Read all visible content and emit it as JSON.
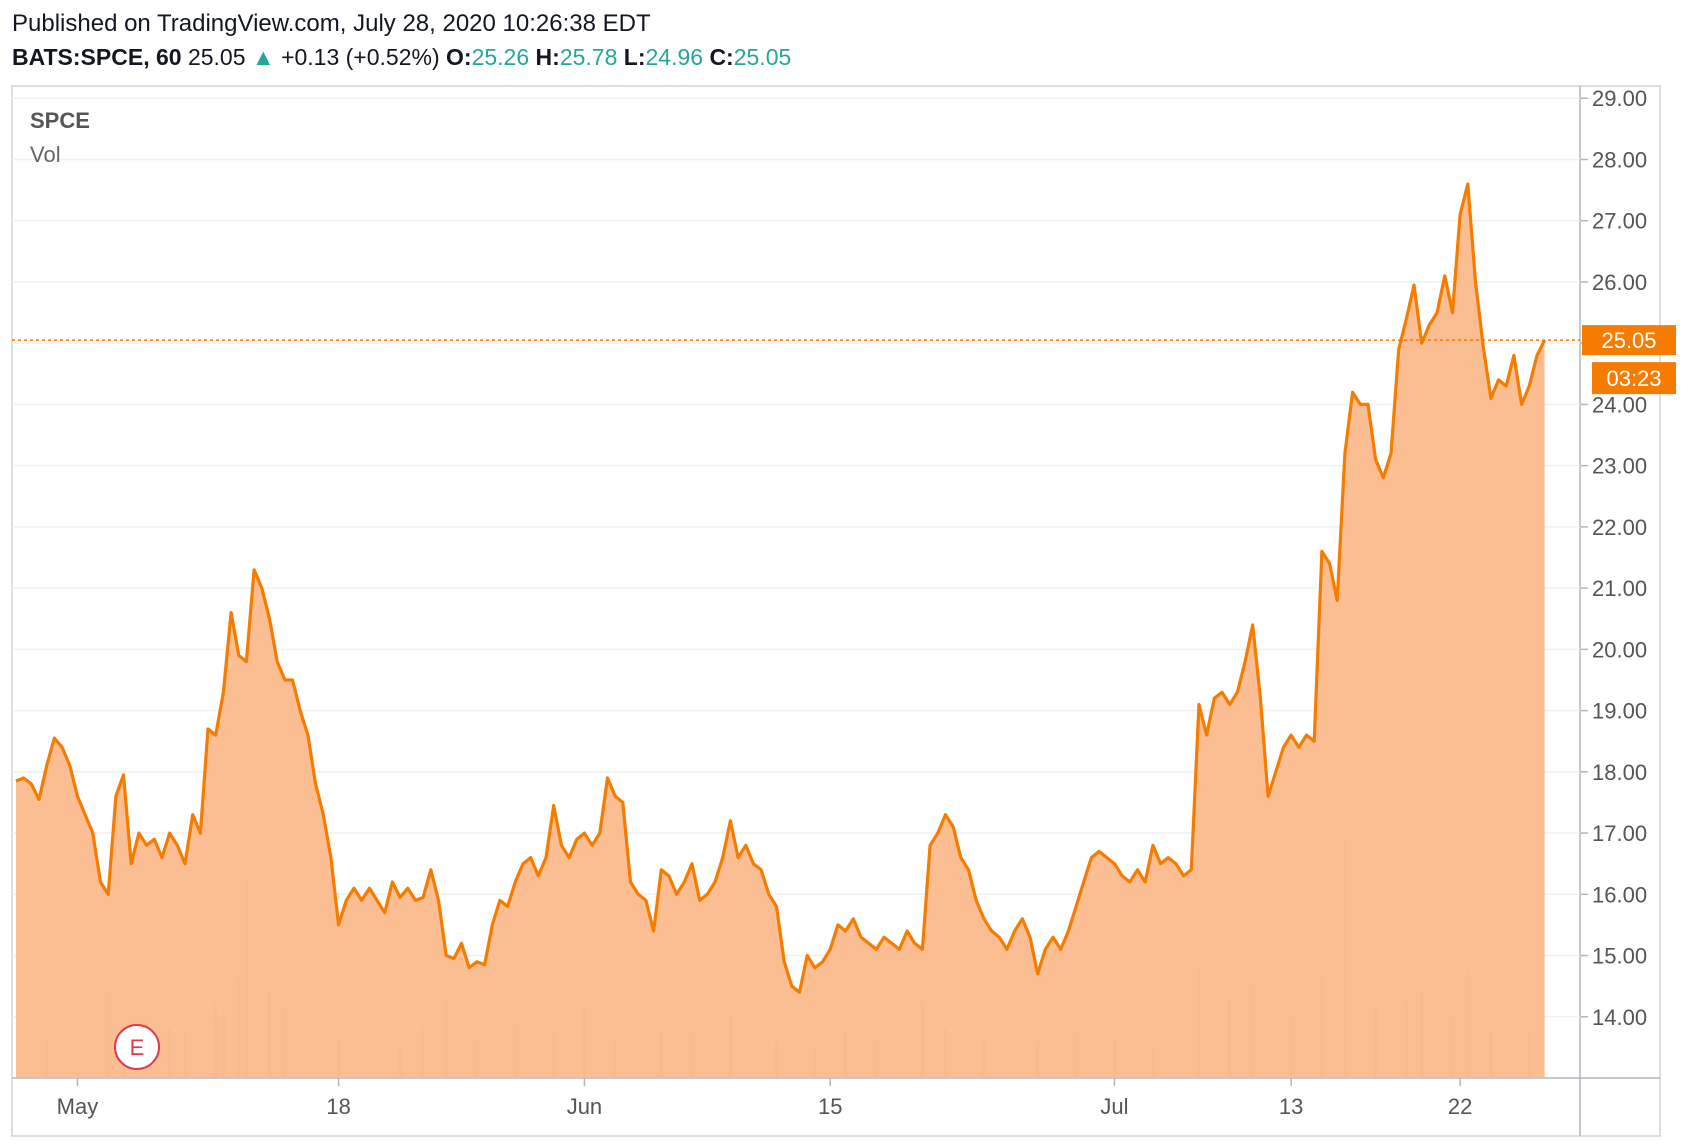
{
  "header": {
    "published": "Published on TradingView.com, July 28, 2020 10:26:38 EDT",
    "symbol": "BATS:SPCE, 60",
    "last": "25.05",
    "arrow": "▲",
    "change": "+0.13 (+0.52%)",
    "open_label": "O:",
    "open": "25.26",
    "high_label": "H:",
    "high": "25.78",
    "low_label": "L:",
    "low": "24.96",
    "close_label": "C:",
    "close": "25.05"
  },
  "legend": {
    "symbol": "SPCE",
    "volume": "Vol"
  },
  "price_tag": "25.05",
  "countdown_tag": "03:23",
  "earnings_marker": "E",
  "colors": {
    "line": "#f57c00",
    "fill": "#fbb88a",
    "up": "#26a69a",
    "grid": "#eef0f3",
    "axis_text": "#555555"
  },
  "chart_data": {
    "type": "area",
    "title": "SPCE",
    "ylim": [
      13.0,
      29.2
    ],
    "y_ticks": [
      "14.00",
      "15.00",
      "16.00",
      "17.00",
      "18.00",
      "19.00",
      "20.00",
      "21.00",
      "22.00",
      "23.00",
      "24.00",
      "25.00",
      "26.00",
      "27.00",
      "28.00",
      "29.00"
    ],
    "x_ticks": [
      {
        "label": "May",
        "x": 8
      },
      {
        "label": "18",
        "x": 42
      },
      {
        "label": "Jun",
        "x": 74
      },
      {
        "label": "15",
        "x": 106
      },
      {
        "label": "Jul",
        "x": 143
      },
      {
        "label": "13",
        "x": 166
      },
      {
        "label": "22",
        "x": 188
      }
    ],
    "x_range": [
      0,
      201
    ],
    "grid": true,
    "series": [
      {
        "values": [
          [
            0,
            17.85
          ],
          [
            1,
            17.9
          ],
          [
            2,
            17.8
          ],
          [
            3,
            17.55
          ],
          [
            4,
            18.1
          ],
          [
            5,
            18.55
          ],
          [
            6,
            18.4
          ],
          [
            7,
            18.1
          ],
          [
            8,
            17.6
          ],
          [
            9,
            17.3
          ],
          [
            10,
            17.0
          ],
          [
            11,
            16.2
          ],
          [
            12,
            16.0
          ],
          [
            13,
            17.6
          ],
          [
            14,
            17.95
          ],
          [
            15,
            16.5
          ],
          [
            16,
            17.0
          ],
          [
            17,
            16.8
          ],
          [
            18,
            16.9
          ],
          [
            19,
            16.6
          ],
          [
            20,
            17.0
          ],
          [
            21,
            16.8
          ],
          [
            22,
            16.5
          ],
          [
            23,
            17.3
          ],
          [
            24,
            17.0
          ],
          [
            25,
            18.7
          ],
          [
            26,
            18.6
          ],
          [
            27,
            19.3
          ],
          [
            28,
            20.6
          ],
          [
            29,
            19.9
          ],
          [
            30,
            19.8
          ],
          [
            31,
            21.3
          ],
          [
            32,
            21.0
          ],
          [
            33,
            20.5
          ],
          [
            34,
            19.8
          ],
          [
            35,
            19.5
          ],
          [
            36,
            19.5
          ],
          [
            37,
            19.0
          ],
          [
            38,
            18.6
          ],
          [
            39,
            17.8
          ],
          [
            40,
            17.3
          ],
          [
            41,
            16.6
          ],
          [
            42,
            15.5
          ],
          [
            43,
            15.9
          ],
          [
            44,
            16.1
          ],
          [
            45,
            15.9
          ],
          [
            46,
            16.1
          ],
          [
            47,
            15.9
          ],
          [
            48,
            15.7
          ],
          [
            49,
            16.2
          ],
          [
            50,
            15.95
          ],
          [
            51,
            16.1
          ],
          [
            52,
            15.9
          ],
          [
            53,
            15.95
          ],
          [
            54,
            16.4
          ],
          [
            55,
            15.9
          ],
          [
            56,
            15.0
          ],
          [
            57,
            14.95
          ],
          [
            58,
            15.2
          ],
          [
            59,
            14.8
          ],
          [
            60,
            14.9
          ],
          [
            61,
            14.85
          ],
          [
            62,
            15.5
          ],
          [
            63,
            15.9
          ],
          [
            64,
            15.8
          ],
          [
            65,
            16.2
          ],
          [
            66,
            16.5
          ],
          [
            67,
            16.6
          ],
          [
            68,
            16.3
          ],
          [
            69,
            16.6
          ],
          [
            70,
            17.45
          ],
          [
            71,
            16.8
          ],
          [
            72,
            16.6
          ],
          [
            73,
            16.9
          ],
          [
            74,
            17.0
          ],
          [
            75,
            16.8
          ],
          [
            76,
            17.0
          ],
          [
            77,
            17.9
          ],
          [
            78,
            17.6
          ],
          [
            79,
            17.5
          ],
          [
            80,
            16.2
          ],
          [
            81,
            16.0
          ],
          [
            82,
            15.9
          ],
          [
            83,
            15.4
          ],
          [
            84,
            16.4
          ],
          [
            85,
            16.3
          ],
          [
            86,
            16.0
          ],
          [
            87,
            16.2
          ],
          [
            88,
            16.5
          ],
          [
            89,
            15.9
          ],
          [
            90,
            16.0
          ],
          [
            91,
            16.2
          ],
          [
            92,
            16.6
          ],
          [
            93,
            17.2
          ],
          [
            94,
            16.6
          ],
          [
            95,
            16.8
          ],
          [
            96,
            16.5
          ],
          [
            97,
            16.4
          ],
          [
            98,
            16.0
          ],
          [
            99,
            15.8
          ],
          [
            100,
            14.9
          ],
          [
            101,
            14.5
          ],
          [
            102,
            14.4
          ],
          [
            103,
            15.0
          ],
          [
            104,
            14.8
          ],
          [
            105,
            14.9
          ],
          [
            106,
            15.1
          ],
          [
            107,
            15.5
          ],
          [
            108,
            15.4
          ],
          [
            109,
            15.6
          ],
          [
            110,
            15.3
          ],
          [
            111,
            15.2
          ],
          [
            112,
            15.1
          ],
          [
            113,
            15.3
          ],
          [
            114,
            15.2
          ],
          [
            115,
            15.1
          ],
          [
            116,
            15.4
          ],
          [
            117,
            15.2
          ],
          [
            118,
            15.1
          ],
          [
            119,
            16.8
          ],
          [
            120,
            17.0
          ],
          [
            121,
            17.3
          ],
          [
            122,
            17.1
          ],
          [
            123,
            16.6
          ],
          [
            124,
            16.4
          ],
          [
            125,
            15.9
          ],
          [
            126,
            15.6
          ],
          [
            127,
            15.4
          ],
          [
            128,
            15.3
          ],
          [
            129,
            15.1
          ],
          [
            130,
            15.4
          ],
          [
            131,
            15.6
          ],
          [
            132,
            15.3
          ],
          [
            133,
            14.7
          ],
          [
            134,
            15.1
          ],
          [
            135,
            15.3
          ],
          [
            136,
            15.1
          ],
          [
            137,
            15.4
          ],
          [
            138,
            15.8
          ],
          [
            139,
            16.2
          ],
          [
            140,
            16.6
          ],
          [
            141,
            16.7
          ],
          [
            142,
            16.6
          ],
          [
            143,
            16.5
          ],
          [
            144,
            16.3
          ],
          [
            145,
            16.2
          ],
          [
            146,
            16.4
          ],
          [
            147,
            16.2
          ],
          [
            148,
            16.8
          ],
          [
            149,
            16.5
          ],
          [
            150,
            16.6
          ],
          [
            151,
            16.5
          ],
          [
            152,
            16.3
          ],
          [
            153,
            16.4
          ],
          [
            154,
            19.1
          ],
          [
            155,
            18.6
          ],
          [
            156,
            19.2
          ],
          [
            157,
            19.3
          ],
          [
            158,
            19.1
          ],
          [
            159,
            19.3
          ],
          [
            160,
            19.8
          ],
          [
            161,
            20.4
          ],
          [
            162,
            19.2
          ],
          [
            163,
            17.6
          ],
          [
            164,
            18.0
          ],
          [
            165,
            18.4
          ],
          [
            166,
            18.6
          ],
          [
            167,
            18.4
          ],
          [
            168,
            18.6
          ],
          [
            169,
            18.5
          ],
          [
            170,
            21.6
          ],
          [
            171,
            21.4
          ],
          [
            172,
            20.8
          ],
          [
            173,
            23.2
          ],
          [
            174,
            24.2
          ],
          [
            175,
            24.0
          ],
          [
            176,
            24.0
          ],
          [
            177,
            23.1
          ],
          [
            178,
            22.8
          ],
          [
            179,
            23.2
          ],
          [
            180,
            24.9
          ],
          [
            181,
            25.4
          ],
          [
            182,
            25.95
          ],
          [
            183,
            25.0
          ],
          [
            184,
            25.3
          ],
          [
            185,
            25.5
          ],
          [
            186,
            26.1
          ],
          [
            187,
            25.5
          ],
          [
            188,
            27.1
          ],
          [
            189,
            27.6
          ],
          [
            190,
            26.0
          ],
          [
            191,
            24.95
          ],
          [
            192,
            24.1
          ],
          [
            193,
            24.4
          ],
          [
            194,
            24.3
          ],
          [
            195,
            24.8
          ],
          [
            196,
            24.0
          ],
          [
            197,
            24.3
          ],
          [
            198,
            24.8
          ],
          [
            199,
            25.05
          ]
        ]
      }
    ],
    "volume": [
      [
        4,
        0.15
      ],
      [
        12,
        0.35
      ],
      [
        14,
        0.1
      ],
      [
        20,
        0.2
      ],
      [
        22,
        0.18
      ],
      [
        26,
        0.3
      ],
      [
        27,
        0.25
      ],
      [
        29,
        0.4
      ],
      [
        30,
        0.8
      ],
      [
        33,
        0.35
      ],
      [
        35,
        0.28
      ],
      [
        42,
        0.15
      ],
      [
        50,
        0.12
      ],
      [
        53,
        0.2
      ],
      [
        56,
        0.3
      ],
      [
        60,
        0.15
      ],
      [
        65,
        0.22
      ],
      [
        70,
        0.18
      ],
      [
        74,
        0.28
      ],
      [
        78,
        0.15
      ],
      [
        84,
        0.2
      ],
      [
        88,
        0.18
      ],
      [
        93,
        0.25
      ],
      [
        99,
        0.15
      ],
      [
        104,
        0.12
      ],
      [
        108,
        0.18
      ],
      [
        112,
        0.14
      ],
      [
        118,
        0.3
      ],
      [
        121,
        0.2
      ],
      [
        126,
        0.16
      ],
      [
        133,
        0.14
      ],
      [
        138,
        0.18
      ],
      [
        143,
        0.16
      ],
      [
        148,
        0.12
      ],
      [
        154,
        0.45
      ],
      [
        158,
        0.32
      ],
      [
        161,
        0.38
      ],
      [
        166,
        0.25
      ],
      [
        170,
        0.4
      ],
      [
        173,
        0.95
      ],
      [
        177,
        0.28
      ],
      [
        181,
        0.3
      ],
      [
        183,
        0.35
      ],
      [
        187,
        0.25
      ],
      [
        189,
        0.42
      ],
      [
        192,
        0.2
      ],
      [
        197,
        0.18
      ]
    ]
  }
}
